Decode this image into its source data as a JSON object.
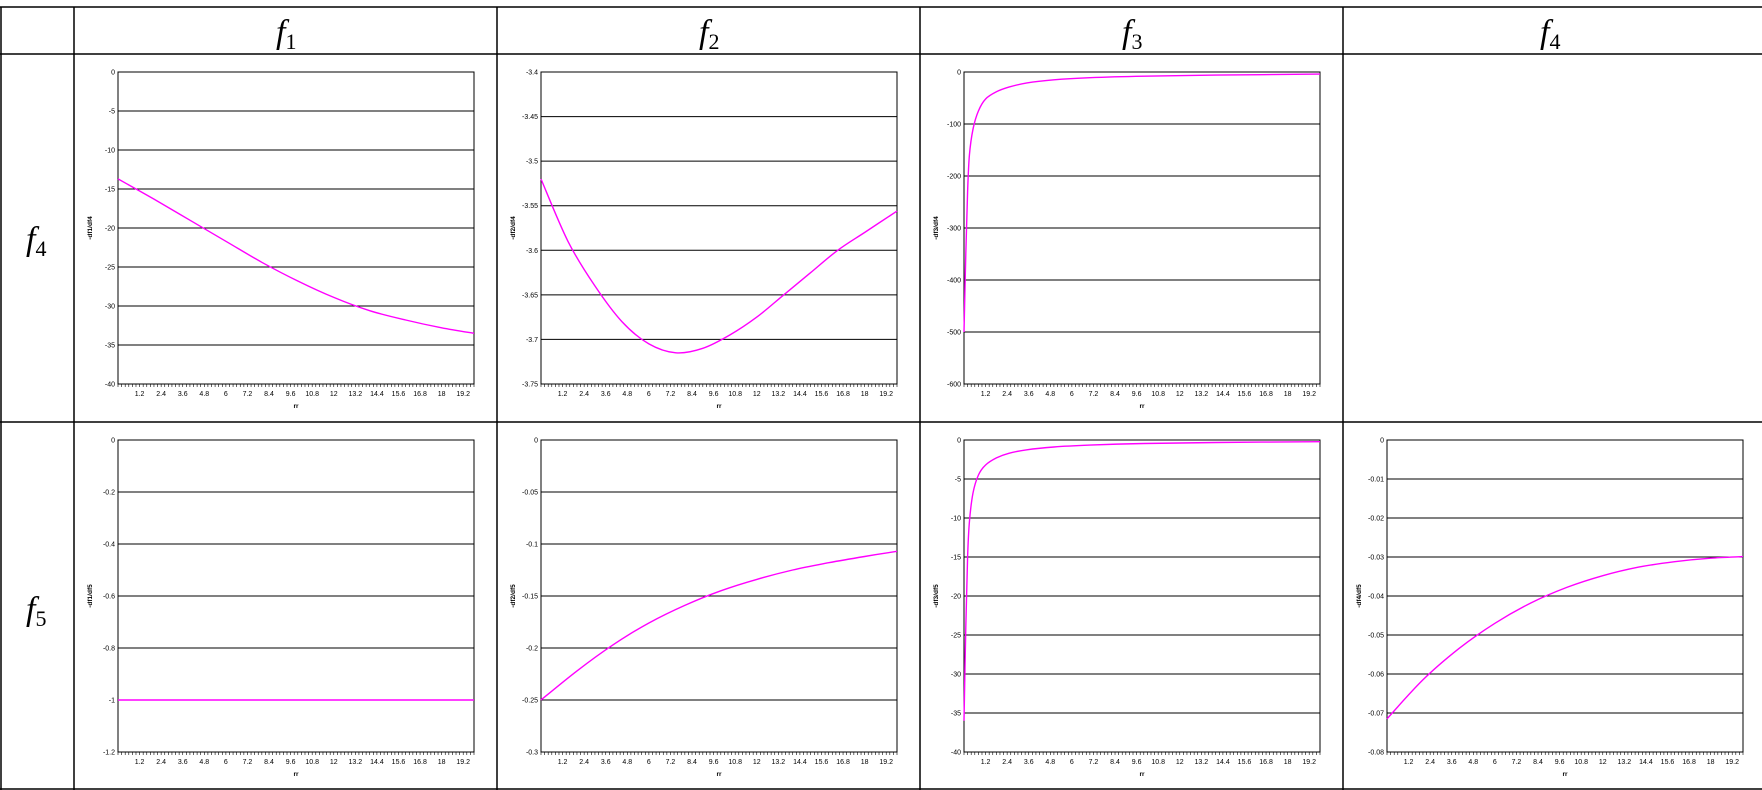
{
  "table": {
    "column_headers": [
      {
        "symbol": "f",
        "sub": "1"
      },
      {
        "symbol": "f",
        "sub": "2"
      },
      {
        "symbol": "f",
        "sub": "3"
      },
      {
        "symbol": "f",
        "sub": "4"
      }
    ],
    "row_headers": [
      {
        "symbol": "f",
        "sub": "4"
      },
      {
        "symbol": "f",
        "sub": "5"
      }
    ]
  },
  "colors": {
    "line": "#ff00ff",
    "grid": "#000000",
    "border": "#000000"
  },
  "chart_data": [
    {
      "type": "line",
      "row": 0,
      "col": 0,
      "ylabel": "-df1/df4",
      "xlabel": "rr",
      "ylim": [
        -40,
        0
      ],
      "yticks": [
        0,
        -5,
        -10,
        -15,
        -20,
        -25,
        -30,
        -35,
        -40
      ],
      "xlim": [
        0,
        198
      ],
      "xticks": [
        1.2,
        2.4,
        3.6,
        4.8,
        6.0,
        7.2,
        8.4,
        9.6,
        10.8,
        12.0,
        13.2,
        14.4,
        15.6,
        16.8,
        18.0,
        19.2
      ],
      "series": [
        {
          "x": [
            0,
            20,
            40,
            60,
            80,
            100,
            120,
            140,
            160,
            180,
            198
          ],
          "y": [
            -13.7,
            -16.3,
            -19.0,
            -21.7,
            -24.4,
            -26.8,
            -28.9,
            -30.6,
            -31.8,
            -32.8,
            -33.5
          ]
        }
      ]
    },
    {
      "type": "line",
      "row": 0,
      "col": 1,
      "ylabel": "-df2/df4",
      "xlabel": "rr",
      "ylim": [
        -3.75,
        -3.4
      ],
      "yticks": [
        -3.4,
        -3.45,
        -3.5,
        -3.55,
        -3.6,
        -3.65,
        -3.7,
        -3.75
      ],
      "xlim": [
        0,
        198
      ],
      "xticks": [
        1.2,
        2.4,
        3.6,
        4.8,
        6.0,
        7.2,
        8.4,
        9.6,
        10.8,
        12.0,
        13.2,
        14.4,
        15.6,
        16.8,
        18.0,
        19.2
      ],
      "series": [
        {
          "x": [
            0,
            15,
            30,
            45,
            60,
            75,
            90,
            105,
            120,
            135,
            150,
            165,
            180,
            198
          ],
          "y": [
            -3.52,
            -3.59,
            -3.64,
            -3.68,
            -3.705,
            -3.715,
            -3.71,
            -3.695,
            -3.675,
            -3.65,
            -3.625,
            -3.6,
            -3.58,
            -3.556
          ]
        }
      ]
    },
    {
      "type": "line",
      "row": 0,
      "col": 2,
      "ylabel": "-df3/df4",
      "xlabel": "rr",
      "ylim": [
        -600,
        0
      ],
      "yticks": [
        0,
        -100,
        -200,
        -300,
        -400,
        -500,
        -600
      ],
      "xlim": [
        0,
        198
      ],
      "xticks": [
        1.2,
        2.4,
        3.6,
        4.8,
        6.0,
        7.2,
        8.4,
        9.6,
        10.8,
        12.0,
        13.2,
        14.4,
        15.6,
        16.8,
        18.0,
        19.2
      ],
      "series": [
        {
          "x": [
            0,
            1,
            2,
            3,
            5,
            8,
            12,
            18,
            25,
            35,
            50,
            70,
            100,
            140,
            198
          ],
          "y": [
            -500,
            -350,
            -230,
            -160,
            -110,
            -75,
            -52,
            -38,
            -29,
            -21,
            -15,
            -11,
            -8,
            -6,
            -4
          ]
        }
      ]
    },
    {
      "type": "line",
      "row": 1,
      "col": 0,
      "ylabel": "-df1/df5",
      "xlabel": "rr",
      "ylim": [
        -1.2,
        0
      ],
      "yticks": [
        0,
        -0.2,
        -0.4,
        -0.6,
        -0.8,
        -1,
        -1.2
      ],
      "xlim": [
        0,
        198
      ],
      "xticks": [
        1.2,
        2.4,
        3.6,
        4.8,
        6.0,
        7.2,
        8.4,
        9.6,
        10.8,
        12.0,
        13.2,
        14.4,
        15.6,
        16.8,
        18.0,
        19.2
      ],
      "series": [
        {
          "x": [
            0,
            198
          ],
          "y": [
            -1,
            -1
          ]
        }
      ]
    },
    {
      "type": "line",
      "row": 1,
      "col": 1,
      "ylabel": "-df2/df5",
      "xlabel": "rr",
      "ylim": [
        -0.3,
        0
      ],
      "yticks": [
        0,
        -0.05,
        -0.1,
        -0.15,
        -0.2,
        -0.25,
        -0.3
      ],
      "xlim": [
        0,
        198
      ],
      "xticks": [
        1.2,
        2.4,
        3.6,
        4.8,
        6.0,
        7.2,
        8.4,
        9.6,
        10.8,
        12.0,
        13.2,
        14.4,
        15.6,
        16.8,
        18.0,
        19.2
      ],
      "series": [
        {
          "x": [
            0,
            20,
            40,
            60,
            80,
            100,
            120,
            140,
            160,
            180,
            198
          ],
          "y": [
            -0.25,
            -0.222,
            -0.197,
            -0.176,
            -0.159,
            -0.145,
            -0.134,
            -0.125,
            -0.118,
            -0.112,
            -0.107
          ]
        }
      ]
    },
    {
      "type": "line",
      "row": 1,
      "col": 2,
      "ylabel": "-df3/df5",
      "xlabel": "rr",
      "ylim": [
        -40,
        0
      ],
      "yticks": [
        0,
        -5,
        -10,
        -15,
        -20,
        -25,
        -30,
        -35,
        -40
      ],
      "xlim": [
        0,
        198
      ],
      "xticks": [
        1.2,
        2.4,
        3.6,
        4.8,
        6.0,
        7.2,
        8.4,
        9.6,
        10.8,
        12.0,
        13.2,
        14.4,
        15.6,
        16.8,
        18.0,
        19.2
      ],
      "series": [
        {
          "x": [
            0,
            1,
            2,
            3,
            5,
            8,
            12,
            18,
            25,
            35,
            50,
            70,
            100,
            140,
            198
          ],
          "y": [
            -36,
            -24,
            -15,
            -10.5,
            -6.8,
            -4.5,
            -3.2,
            -2.3,
            -1.7,
            -1.25,
            -0.9,
            -0.65,
            -0.45,
            -0.32,
            -0.22
          ]
        }
      ]
    },
    {
      "type": "line",
      "row": 1,
      "col": 3,
      "ylabel": "-df4/df5",
      "xlabel": "rr",
      "ylim": [
        -0.08,
        0
      ],
      "yticks": [
        0,
        -0.01,
        -0.02,
        -0.03,
        -0.04,
        -0.05,
        -0.06,
        -0.07,
        -0.08
      ],
      "xlim": [
        0,
        198
      ],
      "xticks": [
        1.2,
        2.4,
        3.6,
        4.8,
        6.0,
        7.2,
        8.4,
        9.6,
        10.8,
        12.0,
        13.2,
        14.4,
        15.6,
        16.8,
        18.0,
        19.2
      ],
      "series": [
        {
          "x": [
            0,
            20,
            40,
            60,
            80,
            100,
            120,
            140,
            160,
            180,
            198
          ],
          "y": [
            -0.0715,
            -0.0615,
            -0.0535,
            -0.047,
            -0.0418,
            -0.0378,
            -0.0348,
            -0.0326,
            -0.0312,
            -0.0303,
            -0.0299
          ]
        }
      ]
    }
  ]
}
